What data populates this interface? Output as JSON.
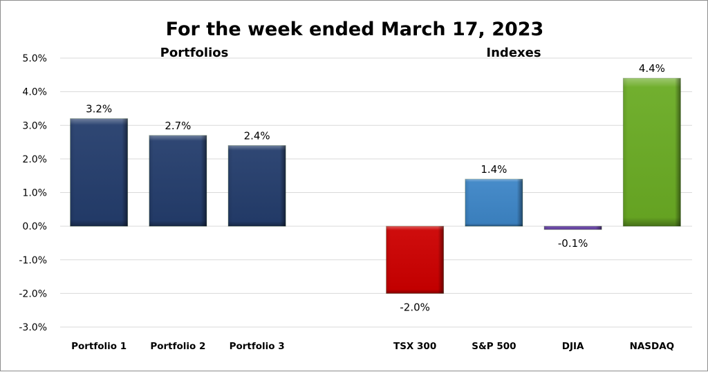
{
  "chart_data": {
    "type": "bar",
    "title": "For the week ended March 17, 2023",
    "groups": [
      {
        "label": "Portfolios",
        "categories": [
          "Portfolio 1",
          "Portfolio 2",
          "Portfolio 3"
        ]
      },
      {
        "label": "Indexes",
        "categories": [
          "TSX 300",
          "S&P 500",
          "DJIA",
          "NASDAQ"
        ]
      }
    ],
    "categories": [
      "Portfolio 1",
      "Portfolio 2",
      "Portfolio 3",
      "TSX 300",
      "S&P 500",
      "DJIA",
      "NASDAQ"
    ],
    "values": [
      3.2,
      2.7,
      2.4,
      -2.0,
      1.4,
      -0.1,
      4.4
    ],
    "data_labels": [
      "3.2%",
      "2.7%",
      "2.4%",
      "-2.0%",
      "1.4%",
      "-0.1%",
      "4.4%"
    ],
    "colors": [
      "#243d6c",
      "#243d6c",
      "#243d6c",
      "#cc0000",
      "#3d85c6",
      "#6a45a8",
      "#6aab24"
    ],
    "ylim": [
      -3.0,
      5.0
    ],
    "yticks": [
      "-3.0%",
      "-2.0%",
      "-1.0%",
      "0.0%",
      "1.0%",
      "2.0%",
      "3.0%",
      "4.0%",
      "5.0%"
    ],
    "xlabel": "",
    "ylabel": "",
    "grid": true,
    "legend": "none"
  }
}
